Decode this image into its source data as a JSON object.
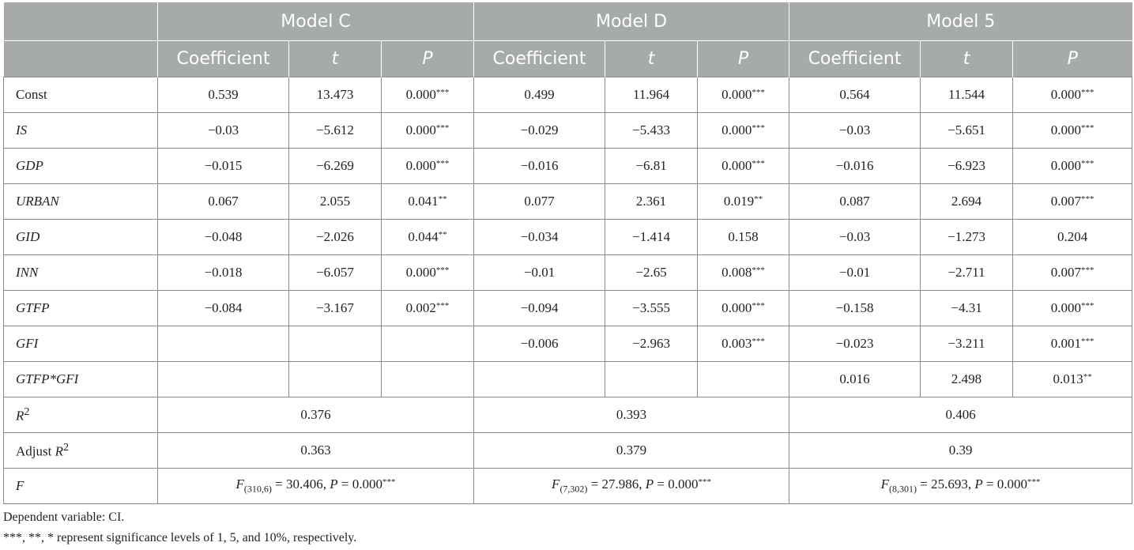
{
  "header": {
    "models": [
      "Model C",
      "Model D",
      "Model 5"
    ],
    "sub_cols": [
      "Coefficient",
      "t",
      "P"
    ]
  },
  "rows": [
    {
      "label": "Const",
      "italic": false,
      "cells": [
        "0.539",
        "13.473",
        "0.000***",
        "0.499",
        "11.964",
        "0.000***",
        "0.564",
        "11.544",
        "0.000***"
      ]
    },
    {
      "label": "IS",
      "italic": true,
      "cells": [
        "−0.03",
        "−5.612",
        "0.000***",
        "−0.029",
        "−5.433",
        "0.000***",
        "−0.03",
        "−5.651",
        "0.000***"
      ]
    },
    {
      "label": "GDP",
      "italic": true,
      "cells": [
        "−0.015",
        "−6.269",
        "0.000***",
        "−0.016",
        "−6.81",
        "0.000***",
        "−0.016",
        "−6.923",
        "0.000***"
      ]
    },
    {
      "label": "URBAN",
      "italic": true,
      "cells": [
        "0.067",
        "2.055",
        "0.041**",
        "0.077",
        "2.361",
        "0.019**",
        "0.087",
        "2.694",
        "0.007***"
      ]
    },
    {
      "label": "GID",
      "italic": true,
      "cells": [
        "−0.048",
        "−2.026",
        "0.044**",
        "−0.034",
        "−1.414",
        "0.158",
        "−0.03",
        "−1.273",
        "0.204"
      ]
    },
    {
      "label": "INN",
      "italic": true,
      "cells": [
        "−0.018",
        "−6.057",
        "0.000***",
        "−0.01",
        "−2.65",
        "0.008***",
        "−0.01",
        "−2.711",
        "0.007***"
      ]
    },
    {
      "label": "GTFP",
      "italic": true,
      "cells": [
        "−0.084",
        "−3.167",
        "0.002***",
        "−0.094",
        "−3.555",
        "0.000***",
        "−0.158",
        "−4.31",
        "0.000***"
      ]
    },
    {
      "label": "GFI",
      "italic": true,
      "cells": [
        "",
        "",
        "",
        "−0.006",
        "−2.963",
        "0.003***",
        "−0.023",
        "−3.211",
        "0.001***"
      ]
    },
    {
      "label": "GTFP*GFI",
      "italic": true,
      "cells": [
        "",
        "",
        "",
        "",
        "",
        "",
        "0.016",
        "2.498",
        "0.013**"
      ]
    }
  ],
  "summary": {
    "r2": {
      "label_prefix": "",
      "label_var": "R",
      "label_sup": "2",
      "values": [
        "0.376",
        "0.393",
        "0.406"
      ]
    },
    "adj_r2": {
      "label_prefix": "Adjust ",
      "label_var": "R",
      "label_sup": "2",
      "values": [
        "0.363",
        "0.379",
        "0.39"
      ]
    },
    "f": {
      "label": "F",
      "values": [
        {
          "df": "(310,6)",
          "fval": "30.406",
          "pval": "0.000",
          "stars": "***"
        },
        {
          "df": "(7,302)",
          "fval": "27.986",
          "pval": "0.000",
          "stars": "***"
        },
        {
          "df": "(8,301)",
          "fval": "25.693",
          "pval": "0.000",
          "stars": "***"
        }
      ]
    }
  },
  "footnotes": {
    "dependent": "Dependent variable: CI.",
    "significance": "***, **, * represent significance levels of 1, 5, and 10%, respectively."
  }
}
